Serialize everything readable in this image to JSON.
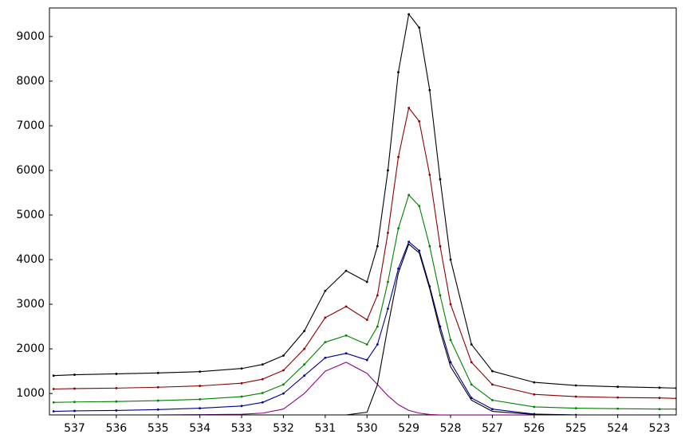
{
  "chart_data": {
    "type": "line",
    "x": [
      537.5,
      537,
      536,
      535,
      534,
      533,
      532.5,
      532,
      531.5,
      531,
      530.5,
      530,
      529.75,
      529.5,
      529.25,
      529,
      528.75,
      528.5,
      528.25,
      528,
      527.5,
      527,
      526,
      525,
      524,
      523,
      522.6
    ],
    "xlim": [
      537.6,
      522.6
    ],
    "xticks": [
      537,
      536,
      535,
      534,
      533,
      532,
      531,
      530,
      529,
      528,
      527,
      526,
      525,
      524,
      523
    ],
    "ylim": [
      520,
      9640
    ],
    "yticks": [
      1000,
      2000,
      3000,
      4000,
      5000,
      6000,
      7000,
      8000,
      9000
    ],
    "series": [
      {
        "color": "#000000",
        "markers": true,
        "values": [
          1400,
          1420,
          1440,
          1460,
          1490,
          1560,
          1650,
          1850,
          2400,
          3300,
          3750,
          3500,
          4300,
          6000,
          8200,
          9500,
          9200,
          7800,
          5800,
          4000,
          2100,
          1500,
          1250,
          1180,
          1150,
          1130,
          1120
        ]
      },
      {
        "color": "#8b0000",
        "markers": true,
        "values": [
          1100,
          1110,
          1120,
          1140,
          1170,
          1230,
          1320,
          1520,
          2000,
          2700,
          2950,
          2650,
          3200,
          4600,
          6300,
          7400,
          7100,
          5900,
          4300,
          3000,
          1700,
          1200,
          980,
          930,
          910,
          900,
          890
        ]
      },
      {
        "color": "#008000",
        "markers": true,
        "values": [
          800,
          810,
          820,
          840,
          870,
          930,
          1010,
          1200,
          1650,
          2150,
          2300,
          2100,
          2500,
          3500,
          4700,
          5450,
          5200,
          4300,
          3200,
          2200,
          1200,
          850,
          700,
          670,
          660,
          650,
          650
        ]
      },
      {
        "color": "#00008b",
        "markers": true,
        "values": [
          600,
          610,
          620,
          640,
          670,
          720,
          800,
          1000,
          1400,
          1800,
          1900,
          1750,
          2100,
          2900,
          3800,
          4400,
          4200,
          3400,
          2500,
          1700,
          900,
          650,
          540,
          520,
          510,
          510,
          510
        ]
      },
      {
        "color": "#8b008b",
        "markers": false,
        "values": [
          520,
          520,
          520,
          520,
          525,
          535,
          560,
          650,
          1000,
          1500,
          1700,
          1450,
          1200,
          950,
          750,
          620,
          560,
          530,
          520,
          520,
          520,
          520,
          520,
          520,
          520,
          520,
          520
        ]
      },
      {
        "color": "#000000",
        "markers": false,
        "values": [
          520,
          520,
          520,
          520,
          520,
          520,
          520,
          520,
          520,
          520,
          520,
          580,
          1200,
          2500,
          3700,
          4350,
          4150,
          3350,
          2400,
          1600,
          850,
          600,
          530,
          520,
          520,
          520,
          520
        ]
      }
    ]
  }
}
